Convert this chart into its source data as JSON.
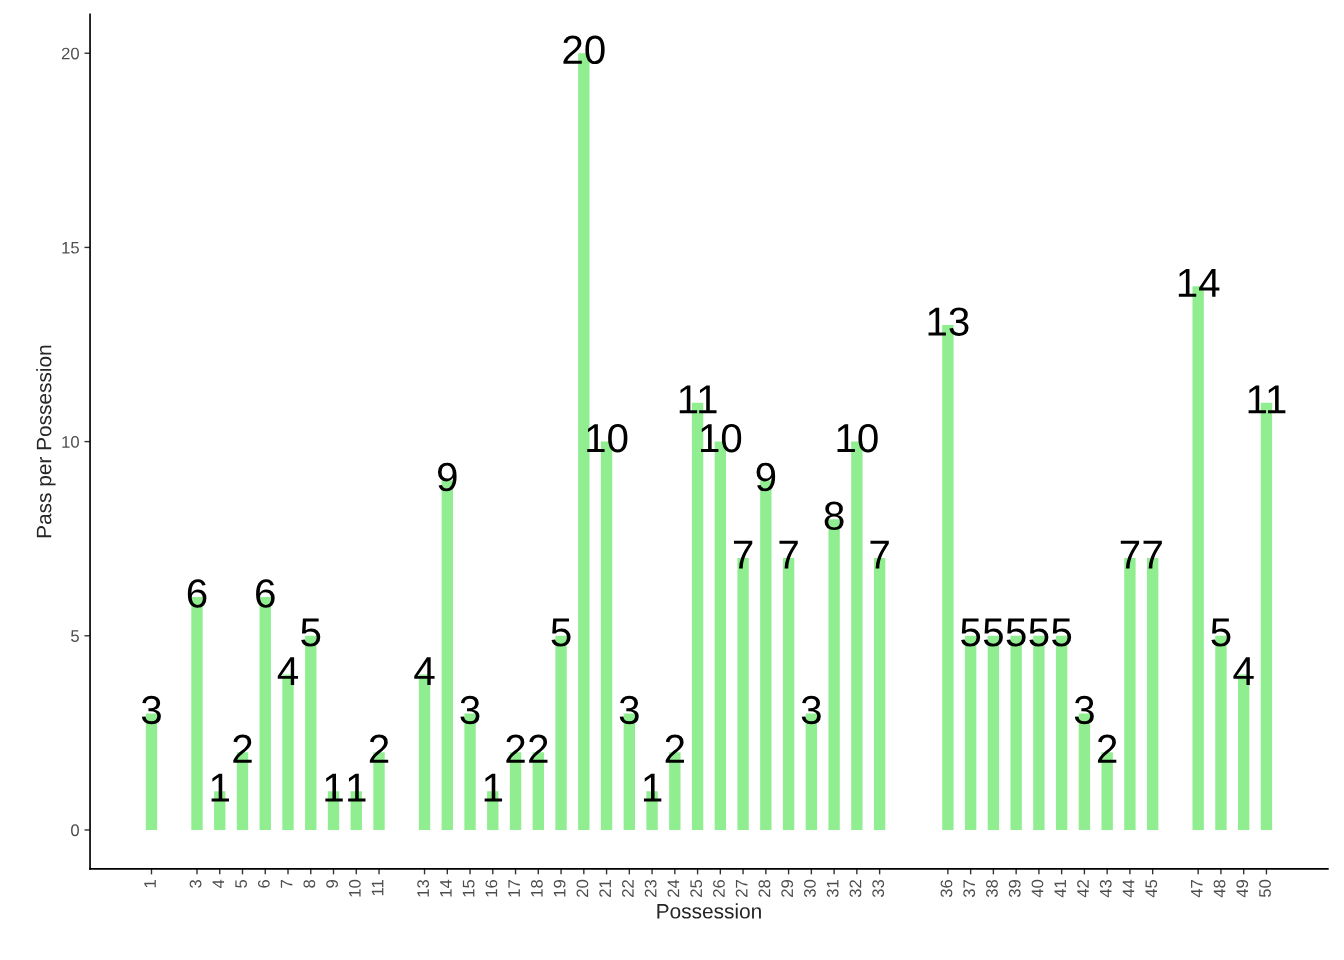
{
  "chart_data": {
    "type": "bar",
    "xlabel": "Possession",
    "ylabel": "Pass per Possession",
    "x": [
      1,
      3,
      4,
      5,
      6,
      7,
      8,
      9,
      10,
      11,
      13,
      14,
      15,
      16,
      17,
      18,
      19,
      20,
      21,
      22,
      23,
      24,
      25,
      26,
      27,
      28,
      29,
      30,
      31,
      32,
      33,
      36,
      37,
      38,
      39,
      40,
      41,
      42,
      43,
      44,
      45,
      47,
      48,
      49,
      50
    ],
    "values": [
      3,
      6,
      1,
      2,
      6,
      4,
      5,
      1,
      1,
      2,
      4,
      9,
      3,
      1,
      2,
      2,
      5,
      20,
      10,
      3,
      1,
      2,
      11,
      10,
      7,
      9,
      7,
      3,
      8,
      10,
      7,
      13,
      5,
      5,
      5,
      5,
      5,
      3,
      2,
      7,
      7,
      14,
      5,
      4,
      11
    ],
    "color": "#90ee90",
    "xlim": [
      -1.7,
      52.7
    ],
    "xticks": [
      1,
      3,
      4,
      5,
      6,
      7,
      8,
      9,
      10,
      11,
      13,
      14,
      15,
      16,
      17,
      18,
      19,
      20,
      21,
      22,
      23,
      24,
      25,
      26,
      27,
      28,
      29,
      30,
      31,
      32,
      33,
      36,
      37,
      38,
      39,
      40,
      41,
      42,
      43,
      44,
      45,
      47,
      48,
      49,
      50
    ],
    "ylim": [
      -1,
      21
    ],
    "yticks": [
      0,
      5,
      10,
      15,
      20
    ],
    "data_labels": true,
    "grid": false,
    "legend": false
  }
}
